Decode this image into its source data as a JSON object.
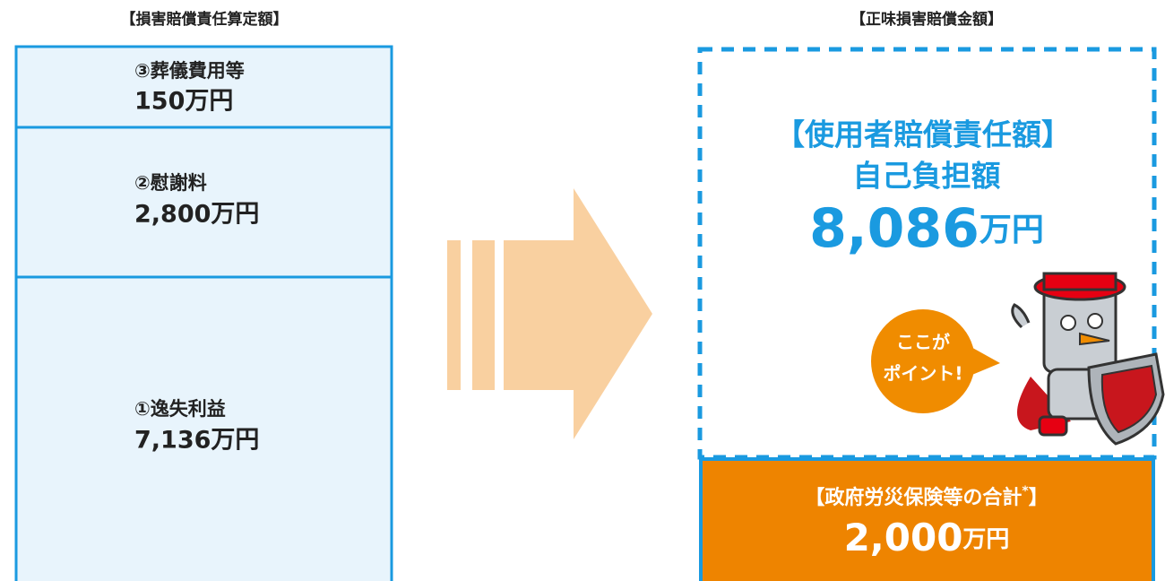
{
  "left": {
    "title": "【損害賠償責任算定額】",
    "items": [
      {
        "label": "③葬儀費用等",
        "amount": "150万円"
      },
      {
        "label": "②慰謝料",
        "amount": "2,800万円"
      },
      {
        "label": "①逸失利益",
        "amount": "7,136万円"
      }
    ]
  },
  "right": {
    "title": "【正味損害賠償金額】",
    "employer": {
      "heading": "【使用者賠償責任額】",
      "subheading": "自己負担額",
      "amount": "8,086",
      "unit": "万円"
    },
    "bubble": {
      "line1": "ここが",
      "line2": "ポイント!"
    },
    "insurance": {
      "heading": "【政府労災保険等の合計",
      "mark": "*",
      "close": "】",
      "amount": "2,000",
      "unit": "万円"
    }
  }
}
